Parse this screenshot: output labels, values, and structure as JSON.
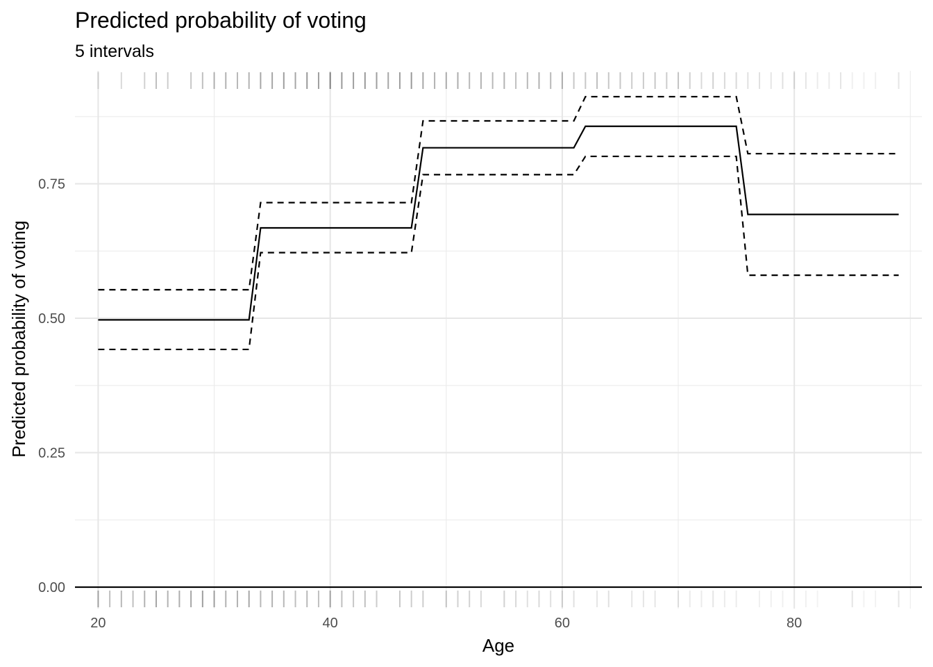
{
  "chart_data": {
    "type": "line",
    "title": "Predicted probability of voting",
    "subtitle": "5 intervals",
    "xlabel": "Age",
    "ylabel": "Predicted probability of voting",
    "xlim": [
      18,
      91
    ],
    "ylim": [
      -0.04,
      0.96
    ],
    "x_ticks": [
      20,
      40,
      60,
      80
    ],
    "x_tick_labels": [
      "20",
      "40",
      "60",
      "80"
    ],
    "y_ticks": [
      0,
      0.25,
      0.5,
      0.75
    ],
    "y_tick_labels": [
      "0.00",
      "0.25",
      "0.50",
      "0.75"
    ],
    "x_minor": [
      30,
      50,
      70,
      90
    ],
    "y_minor": [
      0.125,
      0.375,
      0.625,
      0.875
    ],
    "grid": true,
    "legend": "none",
    "series": [
      {
        "style": "solid",
        "points": [
          [
            20,
            0.497
          ],
          [
            33,
            0.497
          ],
          [
            34,
            0.668
          ],
          [
            47,
            0.668
          ],
          [
            48,
            0.817
          ],
          [
            61,
            0.817
          ],
          [
            62,
            0.857
          ],
          [
            75,
            0.857
          ],
          [
            76,
            0.693
          ],
          [
            89,
            0.693
          ]
        ]
      },
      {
        "style": "dashed",
        "points": [
          [
            20,
            0.553
          ],
          [
            33,
            0.553
          ],
          [
            34,
            0.715
          ],
          [
            47,
            0.715
          ],
          [
            48,
            0.867
          ],
          [
            61,
            0.867
          ],
          [
            62,
            0.912
          ],
          [
            75,
            0.912
          ],
          [
            76,
            0.806
          ],
          [
            89,
            0.806
          ]
        ]
      },
      {
        "style": "dashed",
        "points": [
          [
            20,
            0.442
          ],
          [
            33,
            0.442
          ],
          [
            34,
            0.622
          ],
          [
            47,
            0.622
          ],
          [
            48,
            0.767
          ],
          [
            61,
            0.767
          ],
          [
            62,
            0.801
          ],
          [
            75,
            0.801
          ],
          [
            76,
            0.58
          ],
          [
            89,
            0.58
          ]
        ]
      }
    ],
    "rug_top": {
      "ages": [
        20,
        22,
        24,
        25,
        26,
        28,
        29,
        30,
        31,
        32,
        33,
        34,
        35,
        36,
        37,
        38,
        39,
        40,
        41,
        42,
        43,
        44,
        45,
        46,
        47,
        48,
        49,
        50,
        51,
        52,
        53,
        54,
        55,
        56,
        57,
        58,
        59,
        60,
        61,
        62,
        63,
        64,
        65,
        66,
        67,
        68,
        69,
        70,
        71,
        72,
        73,
        74,
        75,
        76,
        77,
        78,
        79,
        80,
        81,
        82,
        83,
        84,
        85,
        86,
        87,
        89
      ],
      "opacity": [
        0.12,
        0.15,
        0.18,
        0.25,
        0.2,
        0.22,
        0.25,
        0.28,
        0.3,
        0.28,
        0.3,
        0.35,
        0.35,
        0.38,
        0.35,
        0.4,
        0.38,
        0.45,
        0.4,
        0.38,
        0.4,
        0.38,
        0.35,
        0.38,
        0.4,
        0.35,
        0.3,
        0.3,
        0.32,
        0.28,
        0.3,
        0.28,
        0.3,
        0.25,
        0.28,
        0.3,
        0.28,
        0.25,
        0.22,
        0.22,
        0.25,
        0.22,
        0.22,
        0.2,
        0.2,
        0.22,
        0.2,
        0.2,
        0.18,
        0.15,
        0.18,
        0.15,
        0.15,
        0.12,
        0.12,
        0.1,
        0.12,
        0.1,
        0.1,
        0.08,
        0.08,
        0.1,
        0.06,
        0.06,
        0.06,
        0.1
      ]
    },
    "rug_bottom": {
      "ages": [
        20,
        21,
        22,
        23,
        24,
        25,
        26,
        27,
        28,
        29,
        30,
        31,
        32,
        33,
        34,
        35,
        36,
        37,
        38,
        39,
        40,
        41,
        42,
        43,
        44,
        46,
        47,
        48,
        50,
        51,
        52,
        53,
        55,
        56,
        57,
        58,
        59,
        60,
        61,
        63,
        64,
        66,
        67,
        68,
        70,
        71,
        72,
        73,
        74,
        75,
        77,
        78,
        79,
        81,
        82,
        85,
        86,
        87,
        89
      ],
      "opacity": [
        0.3,
        0.25,
        0.28,
        0.25,
        0.3,
        0.35,
        0.3,
        0.32,
        0.35,
        0.38,
        0.35,
        0.3,
        0.3,
        0.35,
        0.28,
        0.3,
        0.28,
        0.25,
        0.28,
        0.25,
        0.3,
        0.25,
        0.22,
        0.25,
        0.2,
        0.22,
        0.2,
        0.2,
        0.2,
        0.18,
        0.18,
        0.15,
        0.18,
        0.15,
        0.12,
        0.15,
        0.12,
        0.12,
        0.12,
        0.1,
        0.12,
        0.1,
        0.1,
        0.1,
        0.1,
        0.08,
        0.08,
        0.1,
        0.08,
        0.08,
        0.06,
        0.06,
        0.06,
        0.06,
        0.05,
        0.1,
        0.05,
        0.05,
        0.1
      ]
    }
  }
}
